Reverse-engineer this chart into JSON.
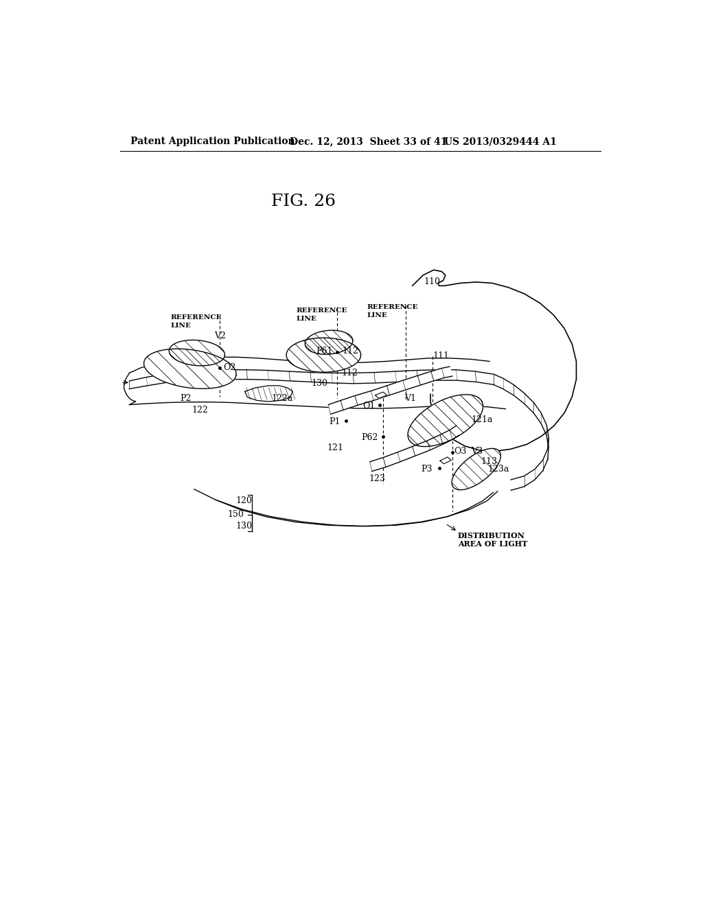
{
  "title": "FIG. 26",
  "header_left": "Patent Application Publication",
  "header_mid": "Dec. 12, 2013  Sheet 33 of 41",
  "header_right": "US 2013/0329444 A1",
  "background_color": "#ffffff",
  "fig_title_fontsize": 18,
  "header_fontsize": 10,
  "label_fontsize": 9
}
